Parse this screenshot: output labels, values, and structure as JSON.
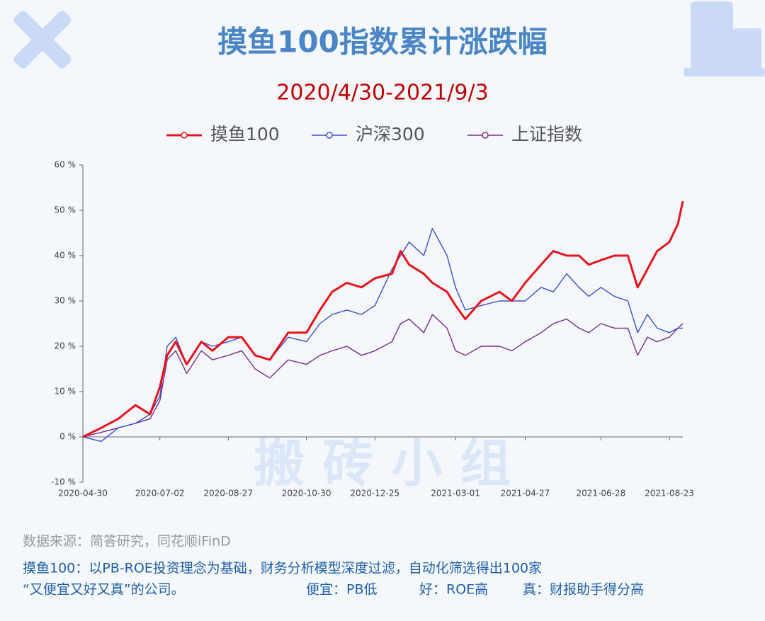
{
  "chart_data": {
    "type": "line",
    "title": "摸鱼100指数累计涨跌幅",
    "subtitle": "2020/4/30-2021/9/3",
    "watermark": "搬 砖 小 组",
    "x": [
      "2020-04-30",
      "2020-05-15",
      "2020-05-29",
      "2020-06-12",
      "2020-06-24",
      "2020-07-02",
      "2020-07-08",
      "2020-07-15",
      "2020-07-24",
      "2020-08-05",
      "2020-08-14",
      "2020-08-27",
      "2020-09-07",
      "2020-09-18",
      "2020-09-30",
      "2020-10-15",
      "2020-10-30",
      "2020-11-10",
      "2020-11-20",
      "2020-12-02",
      "2020-12-14",
      "2020-12-25",
      "2021-01-08",
      "2021-01-15",
      "2021-01-22",
      "2021-02-03",
      "2021-02-10",
      "2021-02-22",
      "2021-03-01",
      "2021-03-09",
      "2021-03-22",
      "2021-04-06",
      "2021-04-16",
      "2021-04-27",
      "2021-05-10",
      "2021-05-20",
      "2021-05-31",
      "2021-06-10",
      "2021-06-18",
      "2021-06-28",
      "2021-07-09",
      "2021-07-20",
      "2021-07-28",
      "2021-08-05",
      "2021-08-13",
      "2021-08-23",
      "2021-08-30",
      "2021-09-03"
    ],
    "series": [
      {
        "name": "摸鱼100",
        "color": "#e8141c",
        "values": [
          0,
          2,
          4,
          7,
          5,
          11,
          18,
          21,
          16,
          21,
          19,
          22,
          22,
          18,
          17,
          23,
          23,
          28,
          32,
          34,
          33,
          35,
          36,
          41,
          38,
          36,
          34,
          32,
          29,
          26,
          30,
          32,
          30,
          34,
          38,
          41,
          40,
          40,
          38,
          39,
          40,
          40,
          33,
          37,
          41,
          43,
          47,
          52
        ]
      },
      {
        "name": "沪深300",
        "color": "#3a4fd0",
        "values": [
          0,
          -1,
          2,
          3,
          5,
          9,
          20,
          22,
          16,
          21,
          20,
          21,
          22,
          18,
          17,
          22,
          21,
          25,
          27,
          28,
          27,
          29,
          37,
          40,
          43,
          40,
          46,
          40,
          33,
          28,
          29,
          30,
          30,
          30,
          33,
          32,
          36,
          33,
          31,
          33,
          31,
          30,
          23,
          27,
          24,
          23,
          24,
          24
        ]
      },
      {
        "name": "上证指数",
        "color": "#7b2a8c",
        "values": [
          0,
          1,
          2,
          3,
          4,
          8,
          17,
          19,
          14,
          19,
          17,
          18,
          19,
          15,
          13,
          17,
          16,
          18,
          19,
          20,
          18,
          19,
          21,
          25,
          26,
          23,
          27,
          24,
          19,
          18,
          20,
          20,
          19,
          21,
          23,
          25,
          26,
          24,
          23,
          25,
          24,
          24,
          18,
          22,
          21,
          22,
          24,
          25
        ]
      }
    ],
    "xlim": [
      "2020-04-30",
      "2021-09-03"
    ],
    "xticks": [
      "2020-04-30",
      "2020-07-02",
      "2020-08-27",
      "2020-10-30",
      "2020-12-25",
      "2021-03-01",
      "2021-04-27",
      "2021-06-28",
      "2021-08-23"
    ],
    "ylim": [
      -10,
      60
    ],
    "yticks": [
      {
        "value": -10,
        "label": "-10 %"
      },
      {
        "value": 0,
        "label": "0 %"
      },
      {
        "value": 10,
        "label": "10 %"
      },
      {
        "value": 20,
        "label": "20 %"
      },
      {
        "value": 30,
        "label": "30 %"
      },
      {
        "value": 40,
        "label": "40 %"
      },
      {
        "value": 50,
        "label": "50 %"
      },
      {
        "value": 60,
        "label": "60 %"
      }
    ],
    "legend": "top",
    "annotations": [
      "数据来源：简答研究，同花顺iFinD",
      "摸鱼100：以PB-ROE投资理念为基础，财务分析模型深度过滤，自动化筛选得出100家",
      "“又便宜又好又真”的公司。",
      "便宜：PB低",
      "好：ROE高",
      "真：财报助手得分高"
    ]
  }
}
